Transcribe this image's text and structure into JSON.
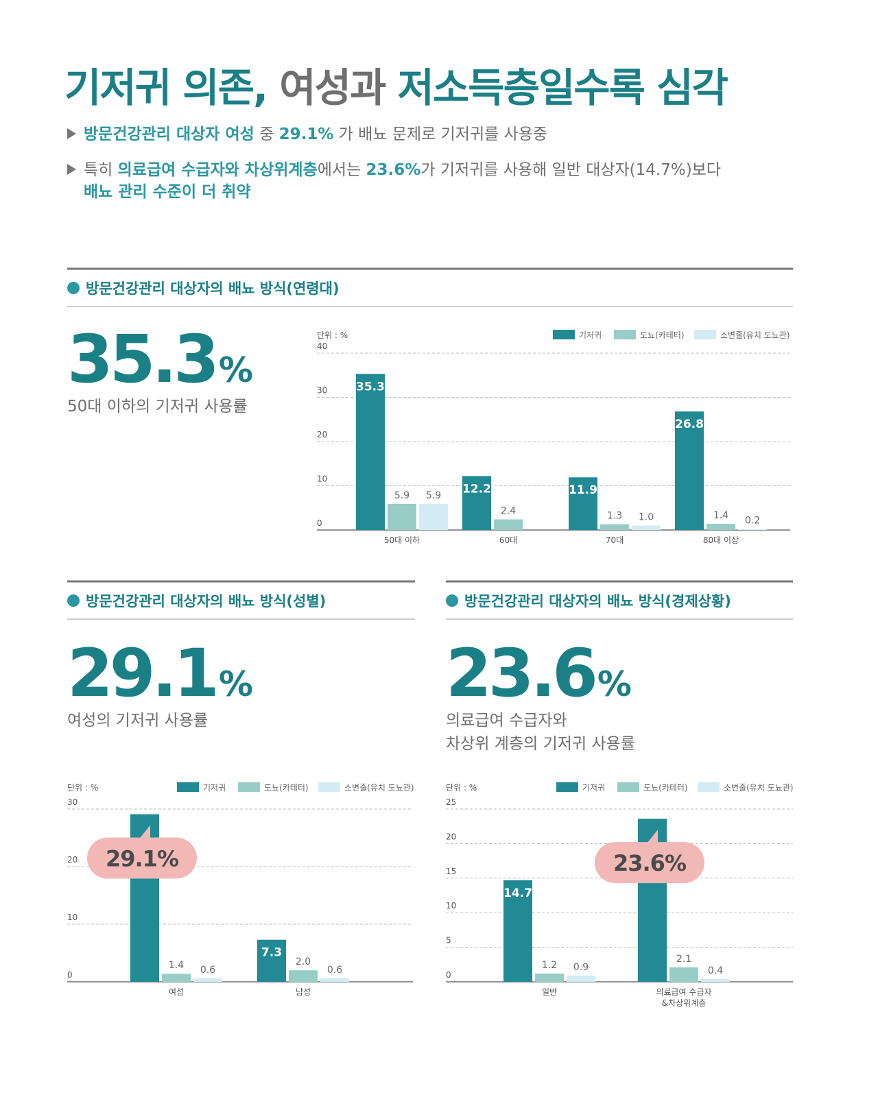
{
  "header": {
    "title": [
      {
        "text": "기저귀 의존, ",
        "emphasis": true
      },
      {
        "text": "여성과 ",
        "emphasis": false
      },
      {
        "text": "저소득층일수록 심각",
        "emphasis": true
      }
    ],
    "bullets": [
      [
        [
          {
            "text": "방문건강관리 대상자 여성",
            "emphasis": true
          },
          {
            "text": " 중 ",
            "emphasis": false
          },
          {
            "text": "29.1%",
            "emphasis": true
          },
          {
            "text": " 가 배뇨 문제로 기저귀를 사용중",
            "emphasis": false
          }
        ]
      ],
      [
        [
          {
            "text": "특히 ",
            "emphasis": false
          },
          {
            "text": "의료급여 수급자와 차상위계층",
            "emphasis": true
          },
          {
            "text": "에서는 ",
            "emphasis": false
          },
          {
            "text": "23.6%",
            "emphasis": true
          },
          {
            "text": "가 기저귀를 사용해 일반 대상자(14.7%)보다",
            "emphasis": false
          }
        ],
        [
          {
            "text": "배뇨 관리 수준이 더 취약",
            "emphasis": true
          }
        ]
      ]
    ]
  },
  "chart_data": [
    {
      "type": "bar",
      "title": "방문건강관리 대상자의 배뇨 방식(연령대)",
      "highlight": "35.3",
      "highlight_unit": "%",
      "caption": [
        "50대 이하의 기저귀 사용률"
      ],
      "unit_label": "단위 : %",
      "categories": [
        "50대 이하",
        "60대",
        "70대",
        "80대 이상"
      ],
      "series": [
        {
          "name": "기저귀",
          "color": "#218a94",
          "values": [
            35.3,
            12.2,
            11.9,
            26.8
          ]
        },
        {
          "name": "도뇨(카테터)",
          "color": "#98cdc7",
          "values": [
            5.9,
            2.4,
            1.3,
            1.4
          ]
        },
        {
          "name": "소변줄(유치 도뇨관)",
          "color": "#d3ecf3",
          "values": [
            5.9,
            null,
            1.0,
            0.2
          ],
          "value_labels": [
            "5.9",
            null,
            "1.0",
            "0.2"
          ]
        }
      ],
      "ylim": [
        0,
        40
      ],
      "yticks": [
        0,
        10,
        20,
        30,
        40
      ],
      "grid": true,
      "legend": "top-right"
    },
    {
      "type": "bar",
      "title": "방문건강관리 대상자의 배뇨 방식(성별)",
      "highlight": "29.1",
      "highlight_unit": "%",
      "caption": [
        "여성의 기저귀 사용률"
      ],
      "unit_label": "단위 : %",
      "categories": [
        "여성",
        "남성"
      ],
      "series": [
        {
          "name": "기저귀",
          "color": "#218a94",
          "values": [
            29.1,
            7.3
          ],
          "value_labels": [
            "29.1%",
            "7.3"
          ]
        },
        {
          "name": "도뇨(카테터)",
          "color": "#98cdc7",
          "values": [
            1.4,
            2.0
          ],
          "value_labels": [
            "1.4",
            "2.0"
          ]
        },
        {
          "name": "소변줄(유치 도뇨관)",
          "color": "#d3ecf3",
          "values": [
            0.6,
            0.6
          ]
        }
      ],
      "callout": 0,
      "ylim": [
        0,
        30
      ],
      "yticks": [
        0,
        10,
        20,
        30
      ],
      "grid": true,
      "legend": "top-right"
    },
    {
      "type": "bar",
      "title": "방문건강관리 대상자의 배뇨 방식(경제상황)",
      "highlight": "23.6",
      "highlight_unit": "%",
      "caption": [
        "의료급여 수급자와",
        "차상위 계층의 기저귀 사용률"
      ],
      "unit_label": "단위 : %",
      "categories": [
        "일반",
        "의료급여 수급자\n&차상위계층"
      ],
      "series": [
        {
          "name": "기저귀",
          "color": "#218a94",
          "values": [
            14.7,
            23.6
          ],
          "value_labels": [
            "14.7",
            "23.6%"
          ]
        },
        {
          "name": "도뇨(카테터)",
          "color": "#98cdc7",
          "values": [
            1.2,
            2.1
          ]
        },
        {
          "name": "소변줄(유치 도뇨관)",
          "color": "#d3ecf3",
          "values": [
            0.9,
            0.4
          ]
        }
      ],
      "callout": 1,
      "ylim": [
        0,
        25
      ],
      "yticks": [
        0,
        5,
        10,
        15,
        20,
        25
      ],
      "grid": true,
      "legend": "top-right"
    }
  ]
}
